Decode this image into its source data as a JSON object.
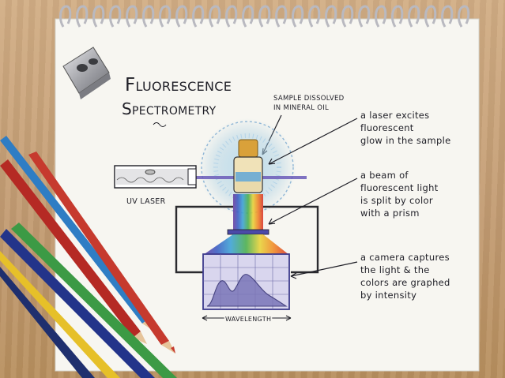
{
  "title": {
    "line1": "Fluorescence",
    "line2": "Spectrometry"
  },
  "labels": {
    "sample": [
      "SAMPLE DISSOLVED",
      "IN MINERAL OIL"
    ],
    "uv_laser": "UV LASER",
    "wavelength": "WAVELENGTH"
  },
  "annotations": [
    {
      "lines": [
        "a laser excites",
        "fluorescent",
        "glow in the sample"
      ]
    },
    {
      "lines": [
        "a beam of",
        "fluorescent light",
        "is split by color",
        "with a prism"
      ]
    },
    {
      "lines": [
        "a camera captures",
        "the light & the",
        "colors are graphed",
        "by intensity"
      ]
    }
  ],
  "colors": {
    "paper": "#f7f6f1",
    "spiral": "#c9c9cf",
    "ink": "#1e1e26",
    "laser_beam": "#6a5bb8",
    "glow": "#9cc8e0",
    "cap": "#d9a13a",
    "rainbow": [
      "#6b3fa0",
      "#3d5fc4",
      "#3fa3d6",
      "#4caf50",
      "#e8d23a",
      "#f08a2a",
      "#d8352c"
    ]
  },
  "objects": {
    "sharpener": "metal-pencil-sharpener",
    "pencils": [
      "blue-pencil",
      "red-pencil",
      "red-pencil",
      "green-pencil",
      "dark-blue-pencil",
      "yellow-pencil"
    ]
  }
}
